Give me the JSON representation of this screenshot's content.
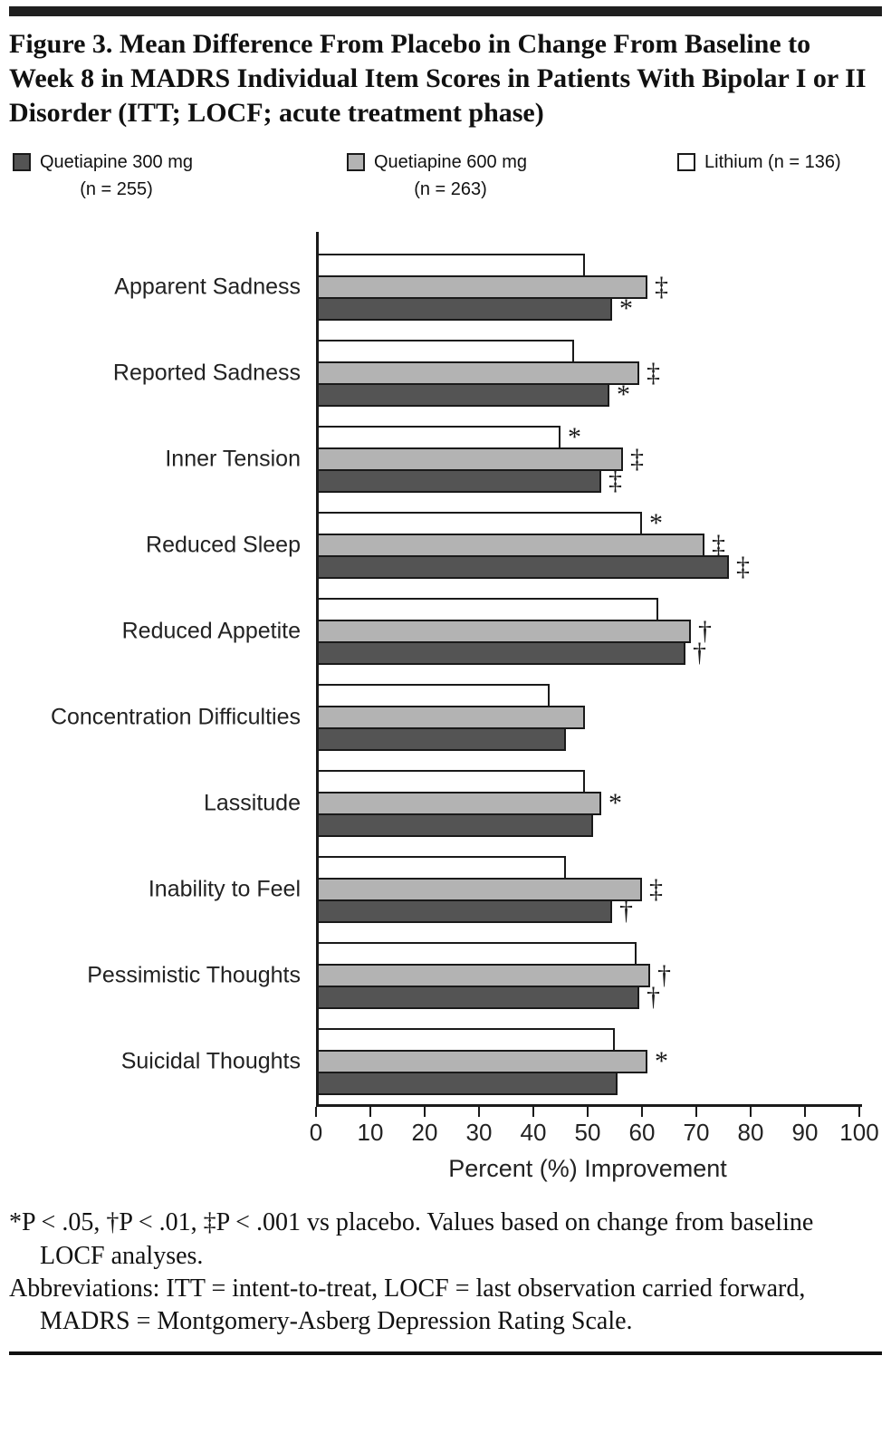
{
  "figure": {
    "title": "Figure 3. Mean Difference From Placebo in Change From Baseline to Week 8 in MADRS Individual Item Scores in Patients With Bipolar I or II Disorder (ITT; LOCF; acute treatment phase)",
    "footnote_significance": "*P < .05, †P < .01, ‡P < .001 vs placebo. Values based on change from baseline LOCF analyses.",
    "footnote_abbreviations": "Abbreviations: ITT = intent-to-treat, LOCF = last observation carried forward, MADRS = Montgomery-Asberg Depression Rating Scale."
  },
  "legend": {
    "items": [
      {
        "label": "Quetiapine 300 mg",
        "sub": "(n = 255)",
        "color": "#545454"
      },
      {
        "label": "Quetiapine 600 mg",
        "sub": "(n = 263)",
        "color": "#b3b3b3"
      },
      {
        "label": "Lithium (n = 136)",
        "sub": "",
        "color": "#ffffff"
      }
    ]
  },
  "chart_data": {
    "type": "bar",
    "orientation": "horizontal",
    "xlabel": "Percent (%) Improvement",
    "xlim": [
      0,
      100
    ],
    "xticks": [
      0,
      10,
      20,
      30,
      40,
      50,
      60,
      70,
      80,
      90,
      100
    ],
    "grid": false,
    "legend_position": "top",
    "significance_key": "* P<.05, † P<.01, ‡ P<.001 vs placebo",
    "categories": [
      "Apparent Sadness",
      "Reported Sadness",
      "Inner Tension",
      "Reduced Sleep",
      "Reduced Appetite",
      "Concentration Difficulties",
      "Lassitude",
      "Inability to Feel",
      "Pessimistic Thoughts",
      "Suicidal Thoughts"
    ],
    "series": [
      {
        "name": "Lithium (n = 136)",
        "color": "#ffffff",
        "values": [
          49,
          47,
          44.5,
          59.5,
          62.5,
          42.5,
          49,
          45.5,
          58.5,
          54.5
        ],
        "significance": [
          "",
          "",
          "*",
          "*",
          "",
          "",
          "",
          "",
          "",
          ""
        ]
      },
      {
        "name": "Quetiapine 600 mg (n = 263)",
        "color": "#b3b3b3",
        "values": [
          60.5,
          59,
          56,
          71,
          68.5,
          49,
          52,
          59.5,
          61,
          60.5
        ],
        "significance": [
          "‡",
          "‡",
          "‡",
          "‡",
          "†",
          "",
          "*",
          "‡",
          "†",
          "*"
        ]
      },
      {
        "name": "Quetiapine 300 mg (n = 255)",
        "color": "#545454",
        "values": [
          54,
          53.5,
          52,
          75.5,
          67.5,
          45.5,
          50.5,
          54,
          59,
          55
        ],
        "significance": [
          "*",
          "*",
          "‡",
          "‡",
          "†",
          "",
          "",
          "†",
          "†",
          ""
        ]
      }
    ]
  }
}
